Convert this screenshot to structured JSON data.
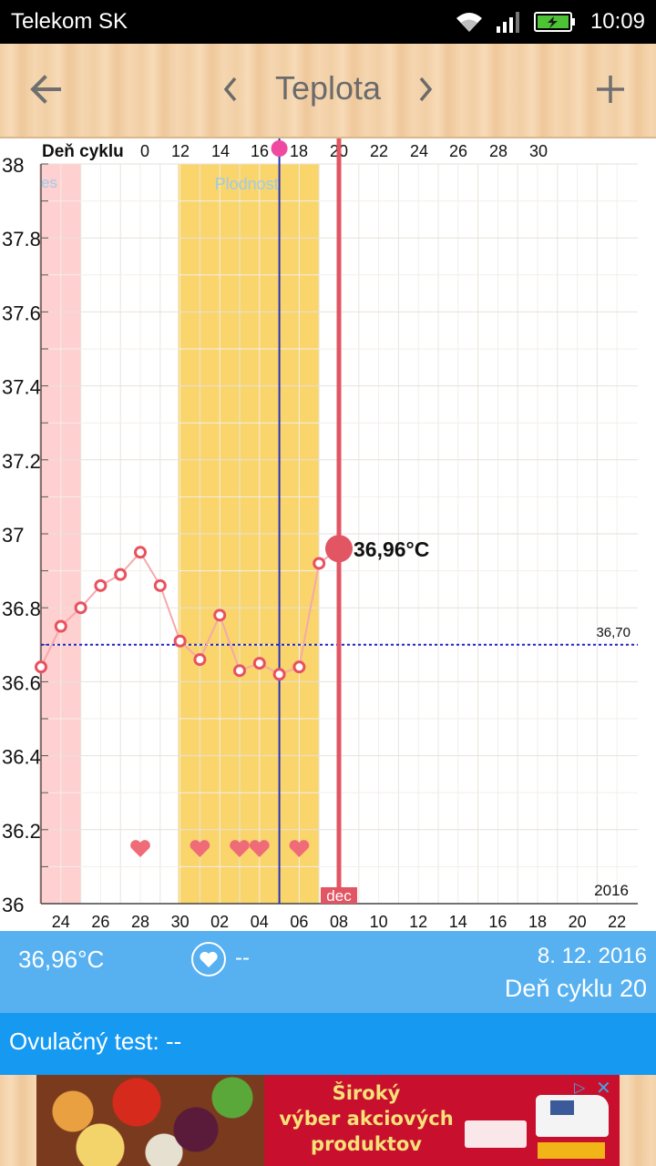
{
  "status_bar": {
    "carrier": "Telekom SK",
    "time": "10:09"
  },
  "header": {
    "title": "Teplota",
    "back_icon": "arrow-left-icon",
    "prev_icon": "chevron-left-icon",
    "next_icon": "chevron-right-icon",
    "add_icon": "plus-icon"
  },
  "chart_data": {
    "type": "line",
    "cycle_label": "Deň cyklu",
    "cycle_ticks": [
      "0",
      "12",
      "14",
      "16",
      "18",
      "20",
      "22",
      "24",
      "26",
      "28",
      "30"
    ],
    "x_ticks": [
      "24",
      "26",
      "28",
      "30",
      "02",
      "04",
      "06",
      "08",
      "10",
      "12",
      "14",
      "16",
      "18",
      "20",
      "22"
    ],
    "ylim": [
      36,
      38
    ],
    "y_ticks": [
      "36",
      "36.2",
      "36.4",
      "36.6",
      "36.8",
      "37",
      "37.2",
      "37.4",
      "37.6",
      "37.8",
      "38"
    ],
    "series": [
      {
        "values": [
          {
            "x": "23",
            "y": 36.64
          },
          {
            "x": "24",
            "y": 36.75
          },
          {
            "x": "25",
            "y": 36.8
          },
          {
            "x": "26",
            "y": 36.86
          },
          {
            "x": "27",
            "y": 36.89
          },
          {
            "x": "28",
            "y": 36.95
          },
          {
            "x": "29",
            "y": 36.86
          },
          {
            "x": "30",
            "y": 36.71
          },
          {
            "x": "01",
            "y": 36.66
          },
          {
            "x": "02",
            "y": 36.78
          },
          {
            "x": "03",
            "y": 36.63
          },
          {
            "x": "04",
            "y": 36.65
          },
          {
            "x": "05",
            "y": 36.62
          },
          {
            "x": "06",
            "y": 36.64
          },
          {
            "x": "07",
            "y": 36.92
          }
        ]
      }
    ],
    "current_point": {
      "x": "08",
      "y": 36.96,
      "label": "36,96°C"
    },
    "coverline": {
      "y": 36.7,
      "label": "36,70"
    },
    "menstruation_band": {
      "label": "es",
      "from": "23",
      "to": "25"
    },
    "fertile_band": {
      "label": "Plodnosť",
      "from": "30",
      "to": "07"
    },
    "ovulation_day": "05",
    "current_day": "08",
    "intercourse_days": [
      "28",
      "01",
      "03",
      "04",
      "06"
    ],
    "month_label": "dec",
    "year_label": "2016",
    "grid": true,
    "colors": {
      "line": "#f6a8ad",
      "point": "#e8525f",
      "current": "#e25563",
      "fertile": "#f9d56c",
      "menstruation": "#ffd0d0",
      "coverline": "#1c20c8",
      "ovulation_line": "#2a2fb8",
      "heart": "#f06b78"
    }
  },
  "info": {
    "temperature": "36,96°C",
    "intercourse_value": "--",
    "date": "8. 12. 2016",
    "cycle_day": "Deň cyklu 20"
  },
  "ovulation": {
    "label": "Ovulačný test: --"
  },
  "ad": {
    "text_line1": "Široký",
    "text_line2": "výber akciových",
    "text_line3": "produktov"
  }
}
